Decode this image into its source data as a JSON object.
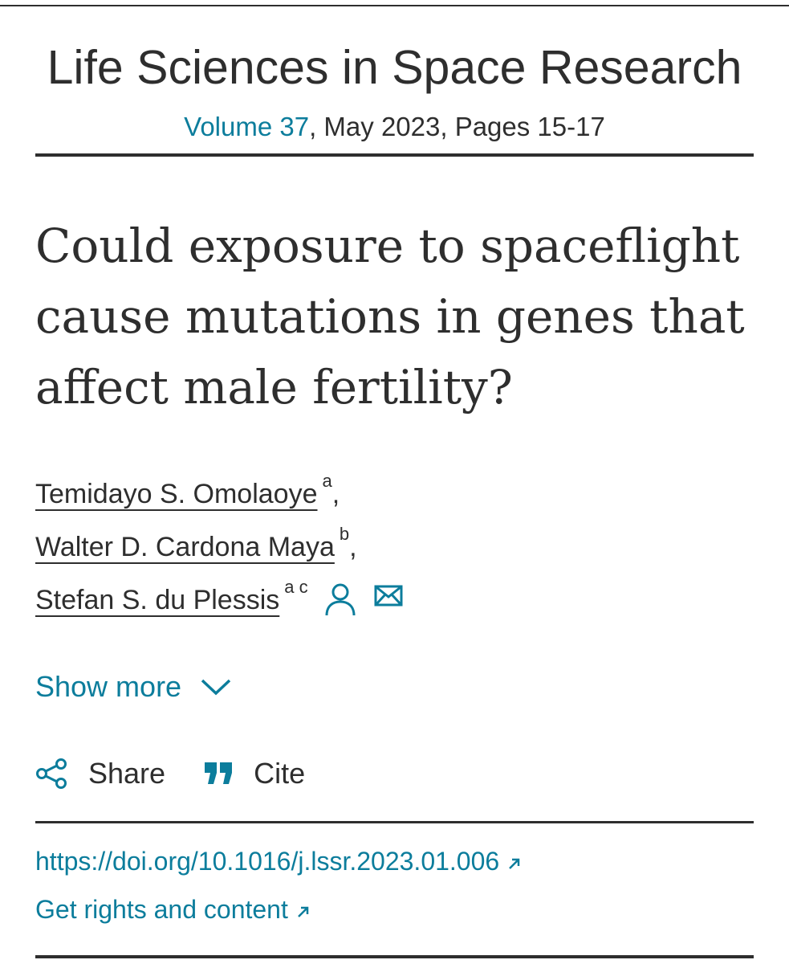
{
  "journal": {
    "title": "Life Sciences in Space Research",
    "volume_link": "Volume 37",
    "issue_rest": ", May 2023, Pages 15-17"
  },
  "article": {
    "title": "Could exposure to spaceflight cause mutations in genes that affect male fertility?"
  },
  "authors": [
    {
      "name": "Temidayo S. Omolaoye",
      "affiliations": "a",
      "suffix": ","
    },
    {
      "name": "Walter D. Cardona Maya",
      "affiliations": "b",
      "suffix": ","
    },
    {
      "name": "Stefan S. du Plessis",
      "affiliations": "a c",
      "suffix": ""
    }
  ],
  "show_more": {
    "label": "Show more"
  },
  "actions": {
    "share_label": "Share",
    "cite_label": "Cite"
  },
  "links": {
    "doi": "https://doi.org/10.1016/j.lssr.2023.01.006",
    "rights": "Get rights and content"
  },
  "colors": {
    "accent": "#0c7d9c",
    "text": "#2e2e2e",
    "rule": "#2e2e2e"
  },
  "icons": {
    "person": "person-icon",
    "mail": "mail-icon",
    "chevron": "chevron-down-icon",
    "share": "share-icon",
    "cite": "quote-icon",
    "external": "external-arrow-icon"
  }
}
